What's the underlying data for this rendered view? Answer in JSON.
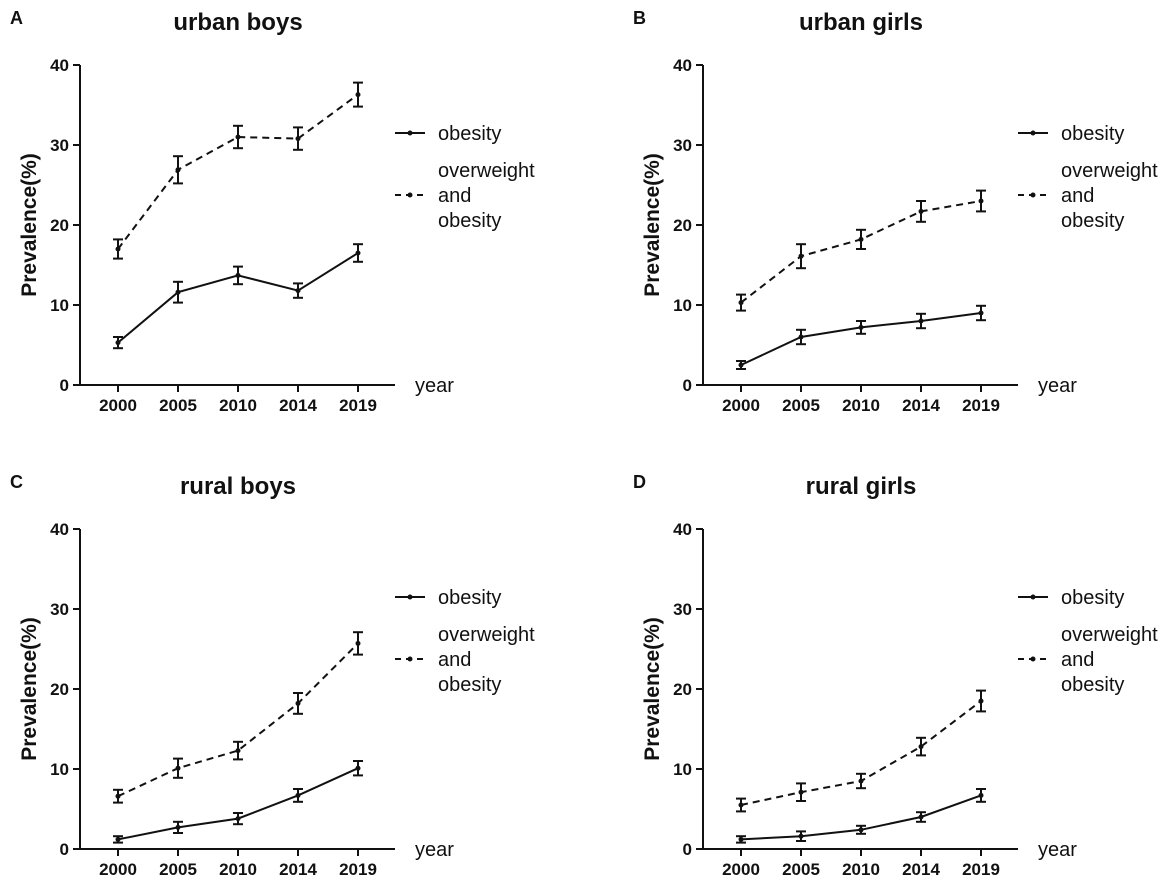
{
  "chart_data": [
    {
      "panel": "A",
      "type": "line",
      "title": "urban boys",
      "ylabel": "Prevalence(%)",
      "xlabel": "year",
      "categories": [
        "2000",
        "2005",
        "2010",
        "2014",
        "2019"
      ],
      "ylim": [
        0,
        40
      ],
      "yticks": [
        "0",
        "10",
        "20",
        "30",
        "40"
      ],
      "series": [
        {
          "name": "obesity",
          "style": "solid",
          "values": [
            5.3,
            11.6,
            13.7,
            11.8,
            16.5
          ],
          "errors": [
            0.7,
            1.3,
            1.1,
            0.9,
            1.1
          ]
        },
        {
          "name": "overweight and obesity",
          "legend_lines": [
            "overweight",
            "and",
            "obesity"
          ],
          "style": "dashed",
          "values": [
            17.0,
            26.9,
            31.0,
            30.8,
            36.3
          ],
          "errors": [
            1.2,
            1.7,
            1.4,
            1.4,
            1.5
          ]
        }
      ]
    },
    {
      "panel": "B",
      "type": "line",
      "title": "urban girls",
      "ylabel": "Prevalence(%)",
      "xlabel": "year",
      "categories": [
        "2000",
        "2005",
        "2010",
        "2014",
        "2019"
      ],
      "ylim": [
        0,
        40
      ],
      "yticks": [
        "0",
        "10",
        "20",
        "30",
        "40"
      ],
      "series": [
        {
          "name": "obesity",
          "style": "solid",
          "values": [
            2.5,
            6.0,
            7.2,
            8.0,
            9.0
          ],
          "errors": [
            0.5,
            0.9,
            0.8,
            0.9,
            0.9
          ]
        },
        {
          "name": "overweight and obesity",
          "legend_lines": [
            "overweight",
            "and",
            "obesity"
          ],
          "style": "dashed",
          "values": [
            10.3,
            16.1,
            18.2,
            21.7,
            23.0
          ],
          "errors": [
            1.0,
            1.5,
            1.2,
            1.3,
            1.3
          ]
        }
      ]
    },
    {
      "panel": "C",
      "type": "line",
      "title": "rural  boys",
      "ylabel": "Prevalence(%)",
      "xlabel": "year",
      "categories": [
        "2000",
        "2005",
        "2010",
        "2014",
        "2019"
      ],
      "ylim": [
        0,
        40
      ],
      "yticks": [
        "0",
        "10",
        "20",
        "30",
        "40"
      ],
      "series": [
        {
          "name": "obesity",
          "style": "solid",
          "values": [
            1.2,
            2.7,
            3.8,
            6.7,
            10.1
          ],
          "errors": [
            0.4,
            0.7,
            0.7,
            0.8,
            0.9
          ]
        },
        {
          "name": "overweight and obesity",
          "legend_lines": [
            "overweight",
            "and",
            "obesity"
          ],
          "style": "dashed",
          "values": [
            6.6,
            10.1,
            12.3,
            18.2,
            25.7
          ],
          "errors": [
            0.8,
            1.2,
            1.1,
            1.3,
            1.4
          ]
        }
      ]
    },
    {
      "panel": "D",
      "type": "line",
      "title": "rural girls",
      "ylabel": "Prevalence(%)",
      "xlabel": "year",
      "categories": [
        "2000",
        "2005",
        "2010",
        "2014",
        "2019"
      ],
      "ylim": [
        0,
        40
      ],
      "yticks": [
        "0",
        "10",
        "20",
        "30",
        "40"
      ],
      "series": [
        {
          "name": "obesity",
          "style": "solid",
          "values": [
            1.2,
            1.6,
            2.4,
            4.0,
            6.7
          ],
          "errors": [
            0.4,
            0.6,
            0.5,
            0.6,
            0.8
          ]
        },
        {
          "name": "overweight and obesity",
          "legend_lines": [
            "overweight",
            "and",
            "obesity"
          ],
          "style": "dashed",
          "values": [
            5.5,
            7.1,
            8.5,
            12.8,
            18.5
          ],
          "errors": [
            0.8,
            1.1,
            0.9,
            1.1,
            1.3
          ]
        }
      ]
    }
  ],
  "colors": {
    "line": "#111111",
    "background": "#ffffff"
  }
}
